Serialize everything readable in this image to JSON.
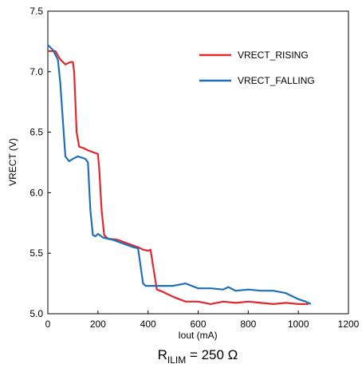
{
  "chart_data": {
    "type": "line",
    "xlabel": "Iout (mA)",
    "ylabel": "VRECT (V)",
    "caption": {
      "main": "R",
      "sub": "ILIM",
      "rest": " = 250 Ω"
    },
    "xlim": [
      0,
      1200
    ],
    "xticks": [
      0,
      200,
      400,
      600,
      800,
      1000,
      1200
    ],
    "ylim": [
      5.0,
      7.5
    ],
    "yticks": [
      {
        "value": 5.0,
        "label": "5.0"
      },
      5.5,
      {
        "value": 6.0,
        "label": "6.0"
      },
      6.5,
      {
        "value": 7.0,
        "label": "7.0"
      },
      7.5
    ],
    "grid": false,
    "legend": "upper right",
    "series": [
      {
        "name": "VRECT_RISING",
        "color": "#e0282e",
        "x": [
          0,
          30,
          50,
          70,
          90,
          100,
          105,
          115,
          125,
          140,
          160,
          200,
          205,
          215,
          225,
          240,
          280,
          320,
          360,
          380,
          400,
          410,
          420,
          435,
          460,
          500,
          550,
          600,
          650,
          700,
          750,
          800,
          850,
          900,
          950,
          1000,
          1040
        ],
        "values": [
          7.17,
          7.17,
          7.1,
          7.06,
          7.08,
          7.08,
          7.0,
          6.5,
          6.38,
          6.37,
          6.35,
          6.32,
          6.2,
          5.85,
          5.65,
          5.62,
          5.61,
          5.58,
          5.55,
          5.53,
          5.52,
          5.53,
          5.4,
          5.2,
          5.18,
          5.14,
          5.1,
          5.1,
          5.08,
          5.1,
          5.09,
          5.1,
          5.09,
          5.08,
          5.09,
          5.08,
          5.08
        ]
      },
      {
        "name": "VRECT_FALLING",
        "color": "#1f6fb8",
        "x": [
          0,
          20,
          40,
          50,
          60,
          70,
          85,
          100,
          120,
          150,
          160,
          170,
          180,
          190,
          200,
          220,
          260,
          300,
          340,
          360,
          370,
          380,
          390,
          450,
          500,
          550,
          600,
          650,
          700,
          720,
          750,
          800,
          850,
          900,
          950,
          1000,
          1030,
          1050
        ],
        "values": [
          7.22,
          7.18,
          7.1,
          6.9,
          6.6,
          6.3,
          6.26,
          6.28,
          6.3,
          6.28,
          6.25,
          5.85,
          5.65,
          5.64,
          5.66,
          5.63,
          5.61,
          5.58,
          5.55,
          5.54,
          5.4,
          5.25,
          5.23,
          5.23,
          5.23,
          5.25,
          5.21,
          5.21,
          5.2,
          5.22,
          5.19,
          5.2,
          5.19,
          5.19,
          5.17,
          5.12,
          5.1,
          5.08
        ]
      }
    ]
  }
}
